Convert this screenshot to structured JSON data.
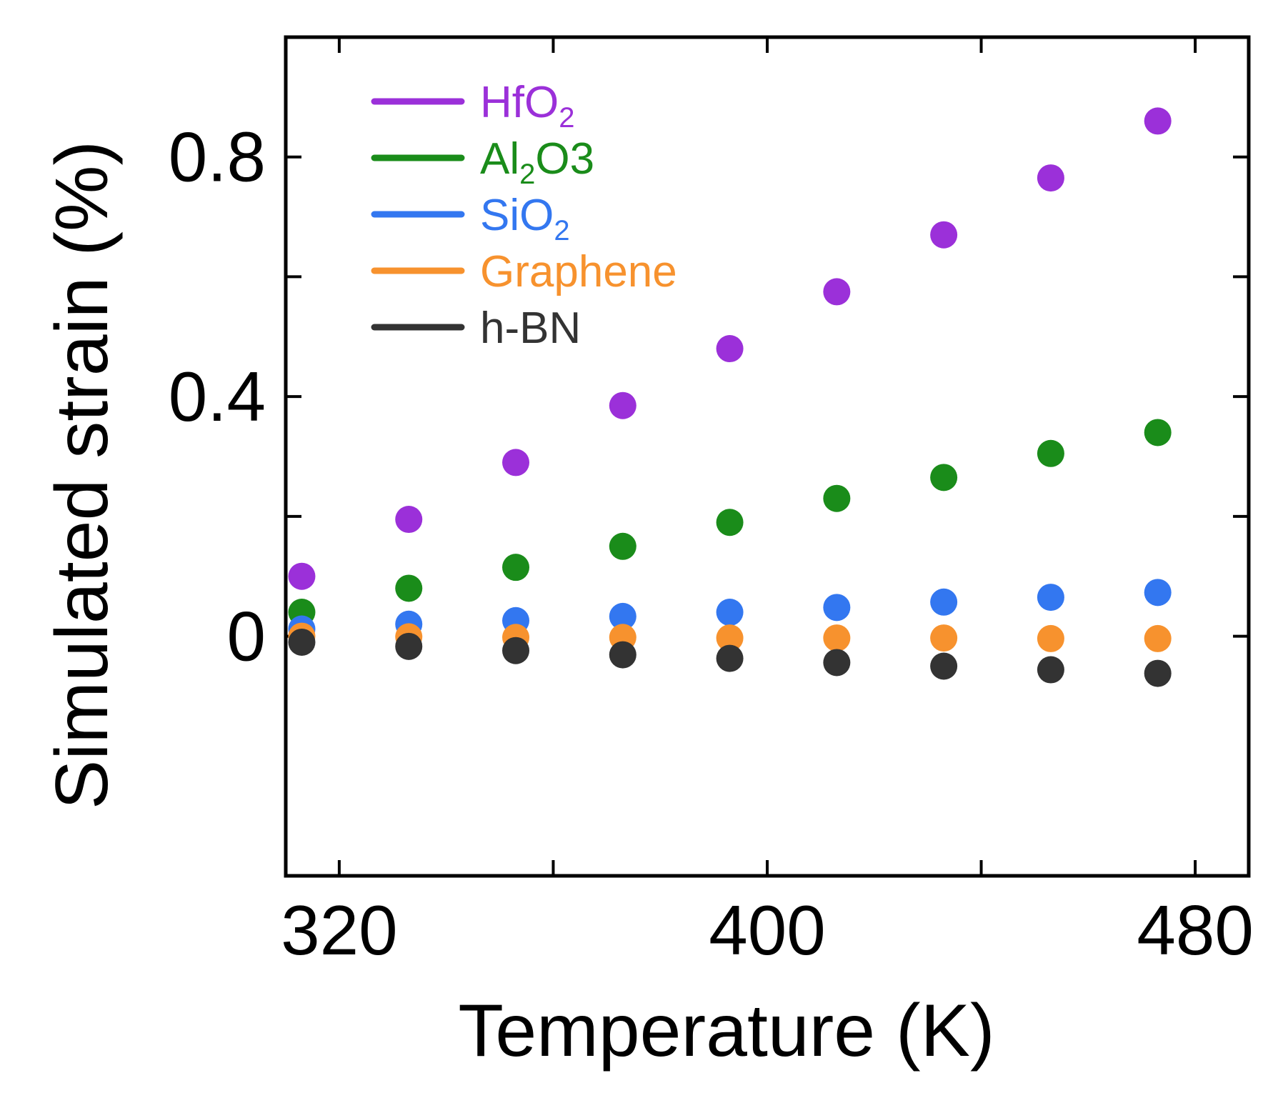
{
  "chart_data": {
    "type": "scatter",
    "title": "",
    "xlabel": "Temperature (K)",
    "ylabel": "Simulated strain (%)",
    "xlim": [
      310,
      490
    ],
    "ylim": [
      -0.4,
      1.0
    ],
    "xticks": [
      320,
      360,
      400,
      440,
      480
    ],
    "xtick_labels": [
      "320",
      "",
      "400",
      "",
      "480"
    ],
    "yticks": [
      0.0,
      0.2,
      0.4,
      0.6,
      0.8
    ],
    "ytick_labels": [
      "0",
      "",
      "0.4",
      "",
      "0.8"
    ],
    "x": [
      313,
      333,
      353,
      373,
      393,
      413,
      433,
      453,
      473
    ],
    "legend_position": "top-left",
    "series": [
      {
        "name": "HfO2",
        "label_main": "HfO",
        "label_sub": "2",
        "label_tail": "",
        "color": "#9b30d9",
        "values": [
          0.1,
          0.195,
          0.29,
          0.385,
          0.48,
          0.575,
          0.67,
          0.765,
          0.86
        ]
      },
      {
        "name": "Al2O3",
        "label_main": "Al",
        "label_sub": "2",
        "label_tail": "O3",
        "color": "#1a8c1a",
        "values": [
          0.04,
          0.08,
          0.115,
          0.15,
          0.19,
          0.23,
          0.265,
          0.305,
          0.34
        ]
      },
      {
        "name": "SiO2",
        "label_main": "SiO",
        "label_sub": "2",
        "label_tail": "",
        "color": "#3377f0",
        "values": [
          0.012,
          0.02,
          0.026,
          0.033,
          0.04,
          0.048,
          0.057,
          0.065,
          0.073
        ]
      },
      {
        "name": "Graphene",
        "label_main": "Graphene",
        "label_sub": "",
        "label_tail": "",
        "color": "#f7922e",
        "values": [
          0.0,
          -0.001,
          -0.002,
          -0.002,
          -0.003,
          -0.003,
          -0.003,
          -0.004,
          -0.004
        ]
      },
      {
        "name": "h-BN",
        "label_main": "h-BN",
        "label_sub": "",
        "label_tail": "",
        "color": "#333333",
        "values": [
          -0.01,
          -0.017,
          -0.024,
          -0.031,
          -0.037,
          -0.044,
          -0.05,
          -0.056,
          -0.062
        ]
      }
    ]
  }
}
